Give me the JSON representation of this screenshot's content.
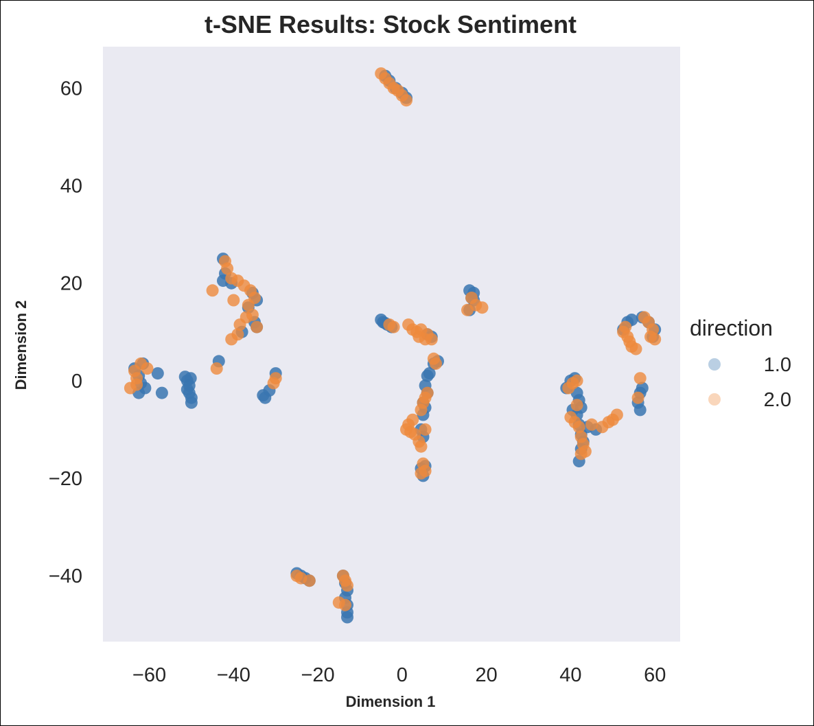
{
  "chart_data": {
    "type": "scatter",
    "title": "t-SNE Results: Stock Sentiment",
    "xlabel": "Dimension 1",
    "ylabel": "Dimension 2",
    "xlim": [
      -71,
      66
    ],
    "ylim": [
      -53.5,
      68.5
    ],
    "xticks": [
      -60,
      -40,
      -20,
      0,
      20,
      40,
      60
    ],
    "yticks": [
      60,
      40,
      20,
      0,
      -20,
      -40
    ],
    "xtick_labels": [
      "−60",
      "−40",
      "−20",
      "0",
      "20",
      "40",
      "60"
    ],
    "ytick_labels": [
      "60",
      "40",
      "20",
      "0",
      "−20",
      "−40"
    ],
    "grid": false,
    "background": "#eaeaf2",
    "legend": {
      "title": "direction",
      "placement": "right"
    },
    "series": [
      {
        "name": "1.0",
        "color": "#3a76b0",
        "points": [
          [
            -63.5,
            2.5
          ],
          [
            -62.5,
            1.0
          ],
          [
            -62.0,
            -0.5
          ],
          [
            -61.5,
            3.5
          ],
          [
            -62.5,
            -2.5
          ],
          [
            -61.0,
            -1.5
          ],
          [
            -58.0,
            1.5
          ],
          [
            -57.0,
            -2.5
          ],
          [
            -51.5,
            0.8
          ],
          [
            -51.0,
            0.0
          ],
          [
            -50.5,
            -1.0
          ],
          [
            -50.5,
            -2.5
          ],
          [
            -50.0,
            -3.5
          ],
          [
            -50.0,
            -4.5
          ],
          [
            -51.0,
            -1.8
          ],
          [
            -50.2,
            0.5
          ],
          [
            -42.5,
            25.0
          ],
          [
            -42.0,
            22.0
          ],
          [
            -42.5,
            20.5
          ],
          [
            -40.5,
            20.0
          ],
          [
            -35.5,
            18.0
          ],
          [
            -34.5,
            16.5
          ],
          [
            -36.5,
            15.0
          ],
          [
            -34.5,
            11.0
          ],
          [
            -38.0,
            10.0
          ],
          [
            -35.0,
            12.0
          ],
          [
            -43.5,
            4.0
          ],
          [
            -33.0,
            -3.0
          ],
          [
            -32.5,
            -3.5
          ],
          [
            -30.0,
            1.5
          ],
          [
            -31.5,
            -2.0
          ],
          [
            -5.0,
            12.5
          ],
          [
            -4.5,
            12.0
          ],
          [
            -3.5,
            11.5
          ],
          [
            -2.5,
            11.0
          ],
          [
            -4.0,
            11.8
          ],
          [
            -4.0,
            62.5
          ],
          [
            -3.0,
            61.5
          ],
          [
            -1.5,
            60.0
          ],
          [
            0.0,
            59.0
          ],
          [
            1.0,
            58.0
          ],
          [
            7.0,
            9.0
          ],
          [
            6.0,
            9.5
          ],
          [
            8.5,
            4.0
          ],
          [
            7.5,
            3.5
          ],
          [
            6.5,
            1.5
          ],
          [
            6.0,
            1.0
          ],
          [
            5.5,
            -1.0
          ],
          [
            6.0,
            -2.5
          ],
          [
            5.0,
            -4.5
          ],
          [
            5.5,
            -5.5
          ],
          [
            5.0,
            -7.0
          ],
          [
            4.5,
            -10.0
          ],
          [
            5.0,
            -11.5
          ],
          [
            4.5,
            -18.0
          ],
          [
            5.0,
            -19.5
          ],
          [
            5.5,
            -17.5
          ],
          [
            16.0,
            18.5
          ],
          [
            17.0,
            18.0
          ],
          [
            16.5,
            17.0
          ],
          [
            16.0,
            14.5
          ],
          [
            17.0,
            16.5
          ],
          [
            -25.0,
            -39.5
          ],
          [
            -24.0,
            -40.0
          ],
          [
            -23.0,
            -40.5
          ],
          [
            -22.0,
            -41.0
          ],
          [
            -14.0,
            -40.0
          ],
          [
            -13.5,
            -41.5
          ],
          [
            -13.0,
            -43.0
          ],
          [
            -13.5,
            -44.5
          ],
          [
            -13.0,
            -46.0
          ],
          [
            -13.0,
            -47.5
          ],
          [
            -13.0,
            -48.5
          ],
          [
            39.0,
            -1.5
          ],
          [
            40.0,
            0.0
          ],
          [
            41.0,
            0.5
          ],
          [
            41.5,
            -2.5
          ],
          [
            42.0,
            -4.0
          ],
          [
            42.5,
            -5.5
          ],
          [
            41.5,
            -7.0
          ],
          [
            42.0,
            -9.0
          ],
          [
            42.5,
            -11.0
          ],
          [
            43.0,
            -12.5
          ],
          [
            42.5,
            -14.0
          ],
          [
            42.0,
            -16.5
          ],
          [
            44.0,
            -9.5
          ],
          [
            46.0,
            -10.0
          ],
          [
            40.5,
            -6.0
          ],
          [
            52.5,
            10.5
          ],
          [
            53.5,
            12.0
          ],
          [
            54.5,
            12.5
          ],
          [
            57.0,
            13.0
          ],
          [
            58.5,
            12.0
          ],
          [
            60.0,
            10.5
          ],
          [
            59.5,
            9.0
          ],
          [
            57.0,
            -1.5
          ],
          [
            56.5,
            -2.5
          ],
          [
            56.0,
            -4.5
          ],
          [
            56.5,
            -6.0
          ]
        ]
      },
      {
        "name": "2.0",
        "color": "#ee8a3c",
        "points": [
          [
            -64.5,
            -1.5
          ],
          [
            -63.0,
            0.5
          ],
          [
            -63.5,
            2.0
          ],
          [
            -62.0,
            3.5
          ],
          [
            -60.5,
            2.5
          ],
          [
            -63.0,
            -0.8
          ],
          [
            -45.0,
            18.5
          ],
          [
            -42.0,
            24.5
          ],
          [
            -41.5,
            23.0
          ],
          [
            -40.5,
            21.0
          ],
          [
            -39.0,
            20.5
          ],
          [
            -37.5,
            19.5
          ],
          [
            -36.0,
            18.5
          ],
          [
            -35.0,
            17.0
          ],
          [
            -36.5,
            15.5
          ],
          [
            -37.0,
            13.0
          ],
          [
            -38.5,
            11.5
          ],
          [
            -39.0,
            9.5
          ],
          [
            -40.5,
            8.5
          ],
          [
            -34.5,
            11.0
          ],
          [
            -35.5,
            13.5
          ],
          [
            -40.0,
            16.5
          ],
          [
            -44.0,
            2.5
          ],
          [
            -30.0,
            0.5
          ],
          [
            -30.5,
            -0.5
          ],
          [
            -5.0,
            63.0
          ],
          [
            -4.0,
            62.0
          ],
          [
            -3.0,
            61.0
          ],
          [
            -2.0,
            60.0
          ],
          [
            -1.0,
            59.5
          ],
          [
            0.0,
            58.5
          ],
          [
            1.0,
            57.5
          ],
          [
            -3.0,
            11.5
          ],
          [
            -2.0,
            11.0
          ],
          [
            1.5,
            11.5
          ],
          [
            2.5,
            10.5
          ],
          [
            3.5,
            10.0
          ],
          [
            4.0,
            9.0
          ],
          [
            4.5,
            10.5
          ],
          [
            6.0,
            9.5
          ],
          [
            5.5,
            8.5
          ],
          [
            7.0,
            8.5
          ],
          [
            7.5,
            4.5
          ],
          [
            8.0,
            3.5
          ],
          [
            6.0,
            -2.5
          ],
          [
            5.5,
            -3.5
          ],
          [
            5.0,
            -4.5
          ],
          [
            4.5,
            -6.0
          ],
          [
            2.5,
            -8.0
          ],
          [
            1.5,
            -9.0
          ],
          [
            2.0,
            -10.5
          ],
          [
            3.0,
            -11.0
          ],
          [
            4.0,
            -12.5
          ],
          [
            4.5,
            -13.5
          ],
          [
            5.5,
            -10.0
          ],
          [
            1.0,
            -10.0
          ],
          [
            5.0,
            -17.0
          ],
          [
            5.5,
            -18.5
          ],
          [
            4.5,
            -19.0
          ],
          [
            15.5,
            14.5
          ],
          [
            16.5,
            17.0
          ],
          [
            17.5,
            15.5
          ],
          [
            19.0,
            15.0
          ],
          [
            -25.0,
            -40.0
          ],
          [
            -24.0,
            -40.5
          ],
          [
            -22.0,
            -41.0
          ],
          [
            -15.0,
            -45.5
          ],
          [
            -13.5,
            -41.0
          ],
          [
            -13.0,
            -42.0
          ],
          [
            -13.5,
            -46.0
          ],
          [
            -14.0,
            -40.0
          ],
          [
            39.5,
            -1.5
          ],
          [
            40.5,
            -0.5
          ],
          [
            41.5,
            0.0
          ],
          [
            40.0,
            -7.5
          ],
          [
            41.0,
            -8.5
          ],
          [
            42.0,
            -9.5
          ],
          [
            42.5,
            -11.5
          ],
          [
            43.0,
            -13.0
          ],
          [
            42.5,
            -15.0
          ],
          [
            43.5,
            -14.5
          ],
          [
            45.0,
            -9.0
          ],
          [
            47.5,
            -9.5
          ],
          [
            49.0,
            -8.5
          ],
          [
            50.0,
            -8.0
          ],
          [
            51.0,
            -7.0
          ],
          [
            41.5,
            -5.0
          ],
          [
            52.5,
            10.0
          ],
          [
            53.0,
            11.0
          ],
          [
            53.5,
            9.0
          ],
          [
            54.0,
            8.0
          ],
          [
            54.5,
            7.0
          ],
          [
            55.5,
            6.5
          ],
          [
            57.5,
            13.0
          ],
          [
            58.5,
            12.0
          ],
          [
            59.5,
            10.5
          ],
          [
            59.0,
            9.0
          ],
          [
            60.0,
            8.5
          ],
          [
            56.5,
            0.5
          ],
          [
            56.0,
            -3.5
          ]
        ]
      }
    ]
  }
}
